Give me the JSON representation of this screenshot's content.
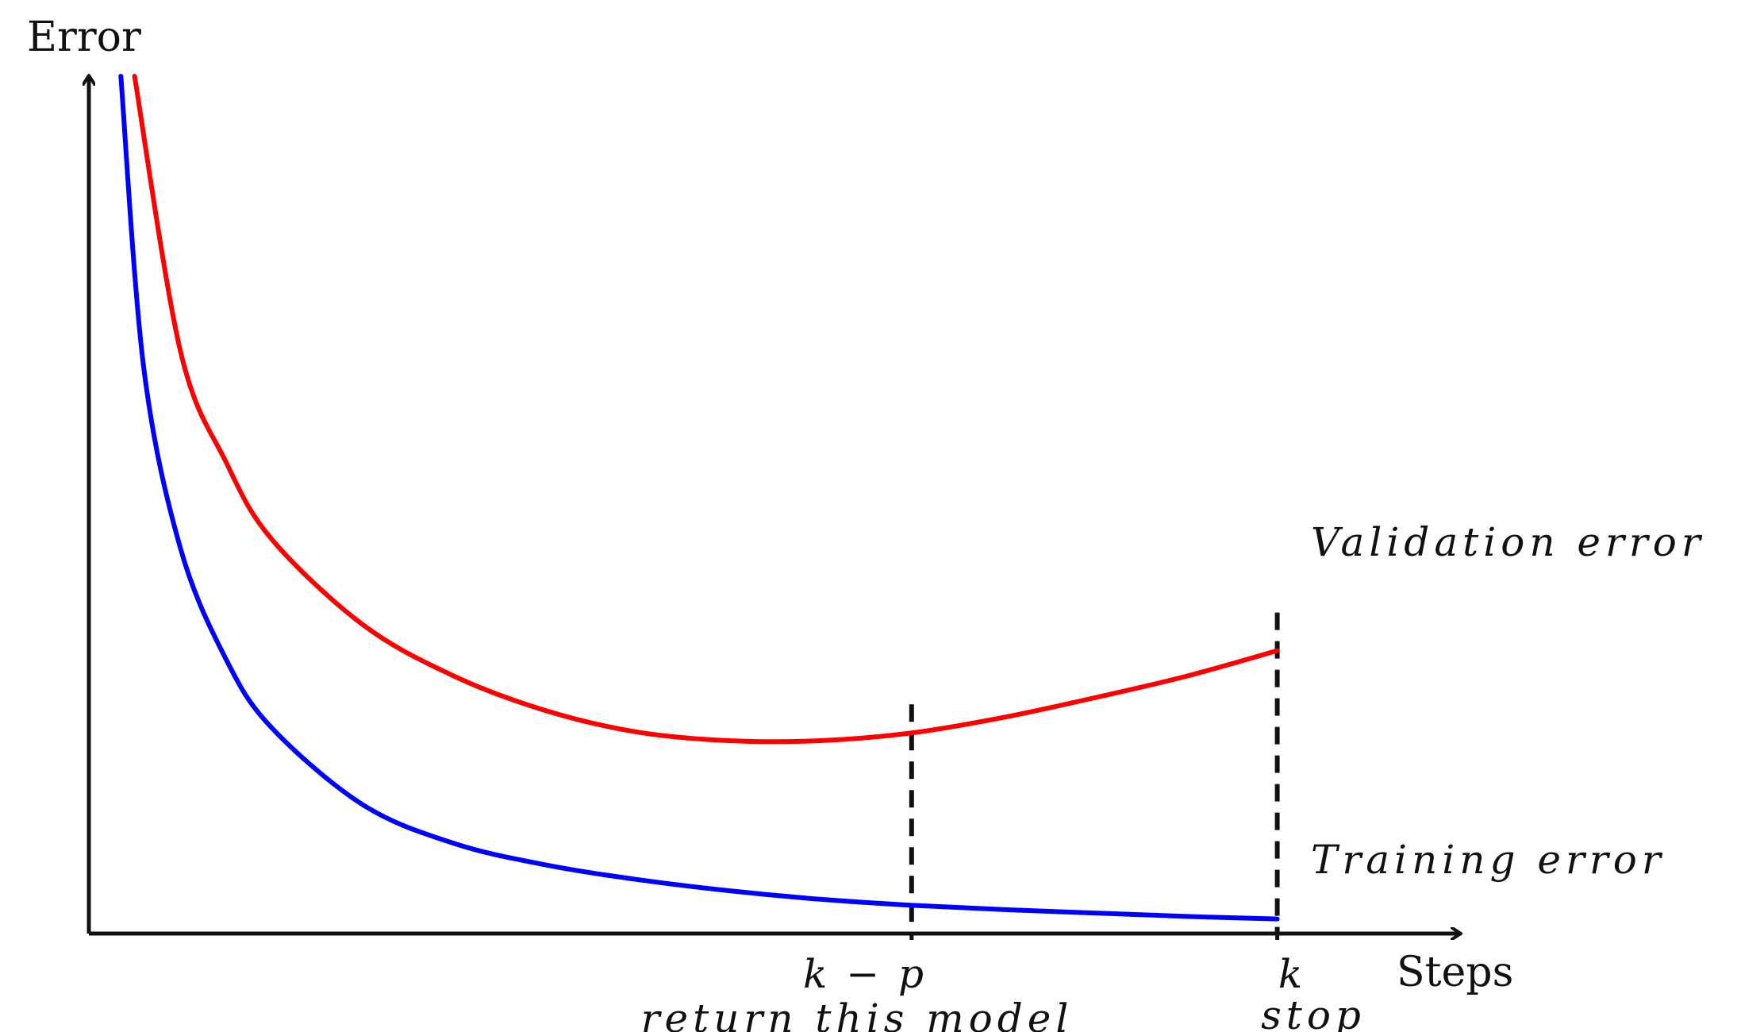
{
  "chart_data": {
    "type": "line",
    "title": "",
    "ylabel": "Error",
    "xlabel": "Steps",
    "xlim": [
      0,
      1.5
    ],
    "ylim": [
      0,
      1.0
    ],
    "grid": false,
    "legend": "none",
    "series": [
      {
        "name": "Validation error",
        "color": "#ff0000",
        "x": [
          0.05,
          0.1,
          0.15,
          0.2,
          0.3,
          0.4,
          0.5,
          0.6,
          0.7,
          0.8,
          0.9,
          1.0,
          1.1,
          1.2,
          1.3
        ],
        "y": [
          1.0,
          0.68,
          0.55,
          0.46,
          0.36,
          0.3,
          0.26,
          0.235,
          0.225,
          0.225,
          0.234,
          0.252,
          0.275,
          0.3,
          0.33
        ]
      },
      {
        "name": "Training error",
        "color": "#0000ff",
        "x": [
          0.035,
          0.06,
          0.1,
          0.15,
          0.2,
          0.3,
          0.4,
          0.5,
          0.6,
          0.7,
          0.8,
          0.9,
          1.0,
          1.1,
          1.2,
          1.3
        ],
        "y": [
          1.0,
          0.66,
          0.45,
          0.32,
          0.24,
          0.15,
          0.105,
          0.08,
          0.063,
          0.05,
          0.04,
          0.033,
          0.028,
          0.024,
          0.02,
          0.017
        ]
      }
    ],
    "markers": [
      {
        "x": 0.9,
        "label": "k − p",
        "caption": "return this model"
      },
      {
        "x": 1.3,
        "label": "k",
        "caption": "stop"
      }
    ]
  }
}
